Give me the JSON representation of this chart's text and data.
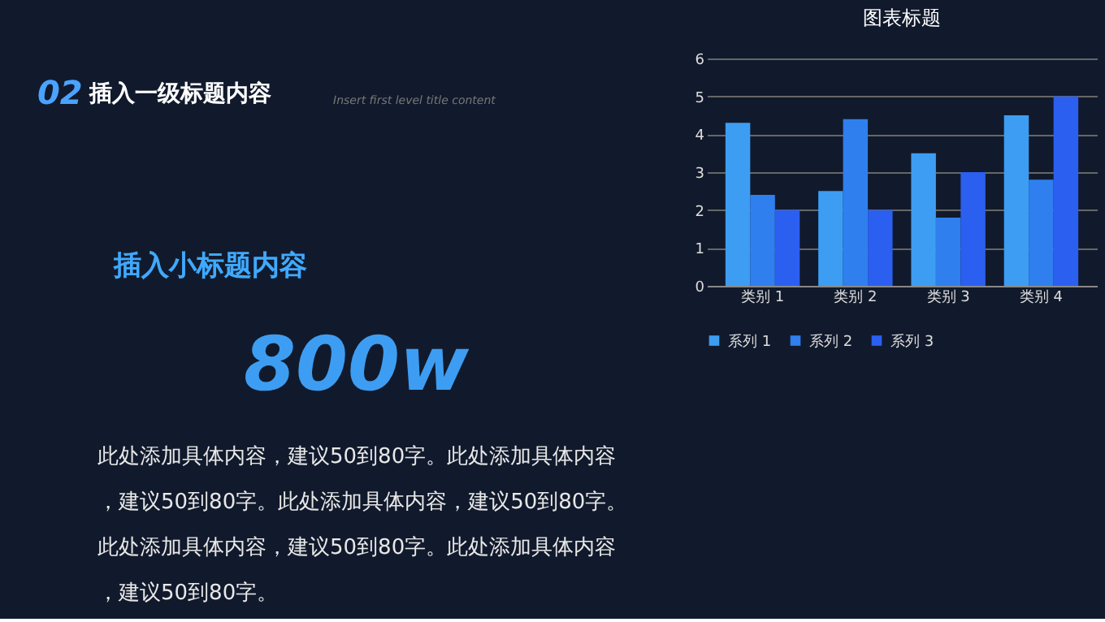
{
  "chart_data": {
    "type": "bar",
    "title": "图表标题",
    "categories": [
      "类别 1",
      "类别 2",
      "类别 3",
      "类别 4"
    ],
    "series": [
      {
        "name": "系列 1",
        "color": "#3d9df2",
        "values": [
          4.3,
          2.5,
          3.5,
          4.5
        ]
      },
      {
        "name": "系列 2",
        "color": "#2f7fee",
        "values": [
          2.4,
          4.4,
          1.8,
          2.8
        ]
      },
      {
        "name": "系列 3",
        "color": "#2b5ff0",
        "values": [
          2,
          2,
          3,
          5
        ]
      }
    ],
    "ylim": [
      0,
      6
    ],
    "yticks": [
      0,
      1,
      2,
      3,
      4,
      5,
      6
    ],
    "grid": "y",
    "legend": "bottom",
    "annotations": [
      "02",
      "插入一级标题内容",
      "Insert first level title content",
      "插入小标题内容",
      "800w",
      "此处添加具体内容，建议50到80字。此处添加具体内容，建议50到80字。此处添加具体内容，建议50到80字。此处添加具体内容，建议50到80字。此处添加具体内容，建议50到80字。"
    ]
  }
}
